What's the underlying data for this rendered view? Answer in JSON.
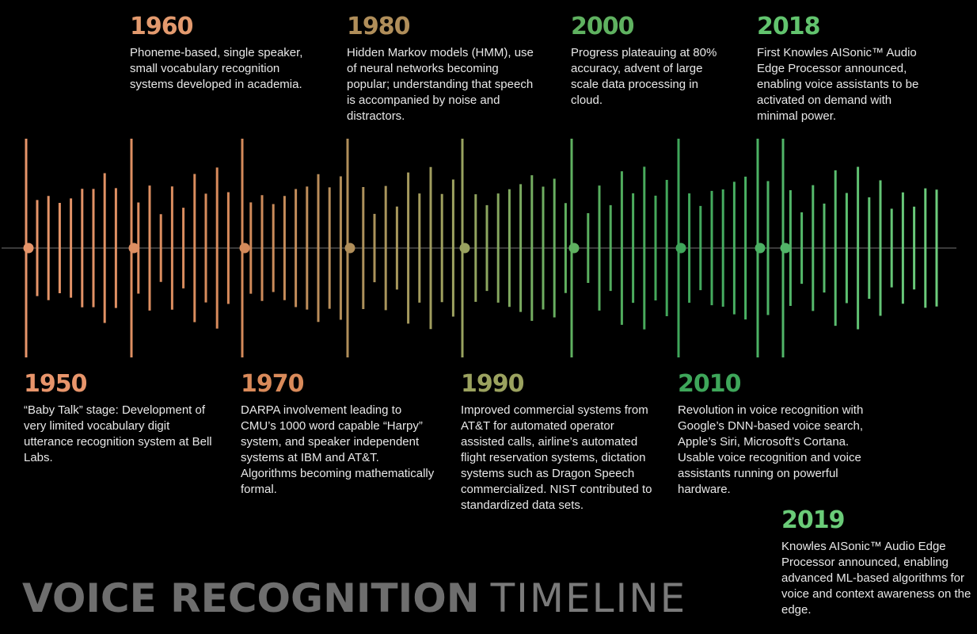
{
  "title": {
    "bold": "VOICE RECOGNITION",
    "light": "TIMELINE"
  },
  "colors": {
    "background": "#000000",
    "axis": "#3a3a3a",
    "title": "#6e6e6e"
  },
  "events": [
    {
      "year": "1950",
      "color": "#e8956b",
      "text": "“Baby Talk” stage: Development of very limited vocabulary digit utterance recognition system at Bell Labs."
    },
    {
      "year": "1960",
      "color": "#e39a6e",
      "text": "Phoneme-based, single speaker, small vocabulary recognition systems developed in academia."
    },
    {
      "year": "1970",
      "color": "#d98a5a",
      "text": "DARPA involvement leading to CMU’s 1000 word capable “Harpy” system, and speaker independent systems at IBM and AT&T. Algorithms becoming mathematically formal."
    },
    {
      "year": "1980",
      "color": "#b08e5a",
      "text": "Hidden Markov models (HMM), use of neural networks becoming popular; understanding that speech is accompanied by noise and distractors."
    },
    {
      "year": "1990",
      "color": "#9ba25f",
      "text": "Improved commercial systems from AT&T for automated operator assisted calls, airline’s automated flight reservation systems, dictation systems such as Dragon Speech commercialized. NIST contributed to standardized data sets."
    },
    {
      "year": "2000",
      "color": "#5fb160",
      "text": "Progress plateauing at 80% accuracy, advent of large scale data processing in cloud."
    },
    {
      "year": "2010",
      "color": "#3ea65a",
      "text": "Revolution in voice recognition with Google’s DNN-based voice search, Apple’s Siri, Microsoft’s Cortana. Usable voice recognition and voice assistants running on powerful hardware."
    },
    {
      "year": "2018",
      "color": "#62c46e",
      "text": "First Knowles AISonic™ Audio Edge Processor announced, enabling voice assistants to be activated on demand with minimal power."
    },
    {
      "year": "2019",
      "color": "#6acb78",
      "text": "Knowles AISonic™ Audio Edge Processor announced, enabling advanced ML-based algorithms for voice and context awareness on the edge."
    }
  ]
}
